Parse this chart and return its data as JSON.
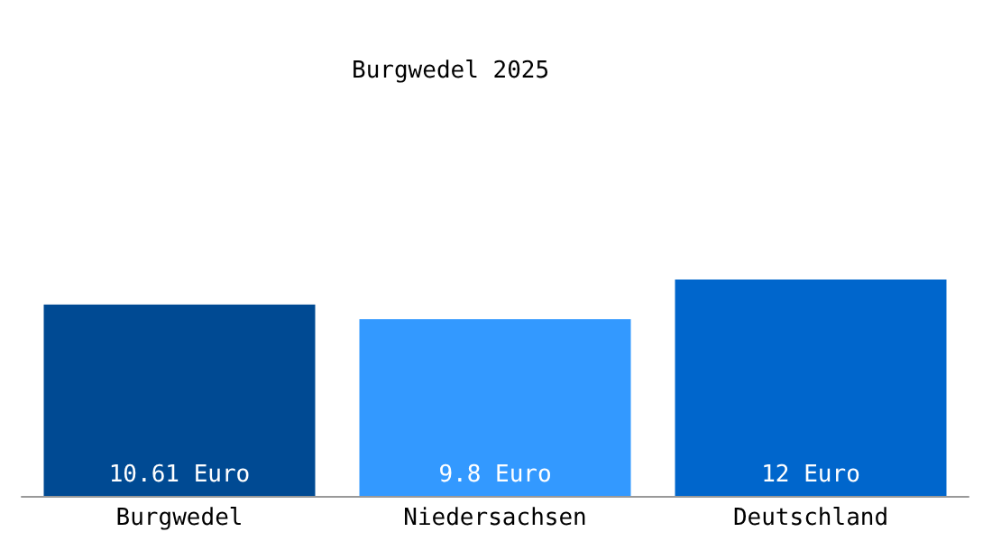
{
  "chart_data": {
    "type": "bar",
    "title": "Burgwedel 2025",
    "categories": [
      "Burgwedel",
      "Niedersachsen",
      "Deutschland"
    ],
    "values": [
      10.61,
      9.8,
      12
    ],
    "colors": [
      "#004a93",
      "#3399ff",
      "#0066cc"
    ],
    "value_labels": [
      "10.61 Euro",
      "9.8 Euro",
      "12 Euro"
    ]
  }
}
